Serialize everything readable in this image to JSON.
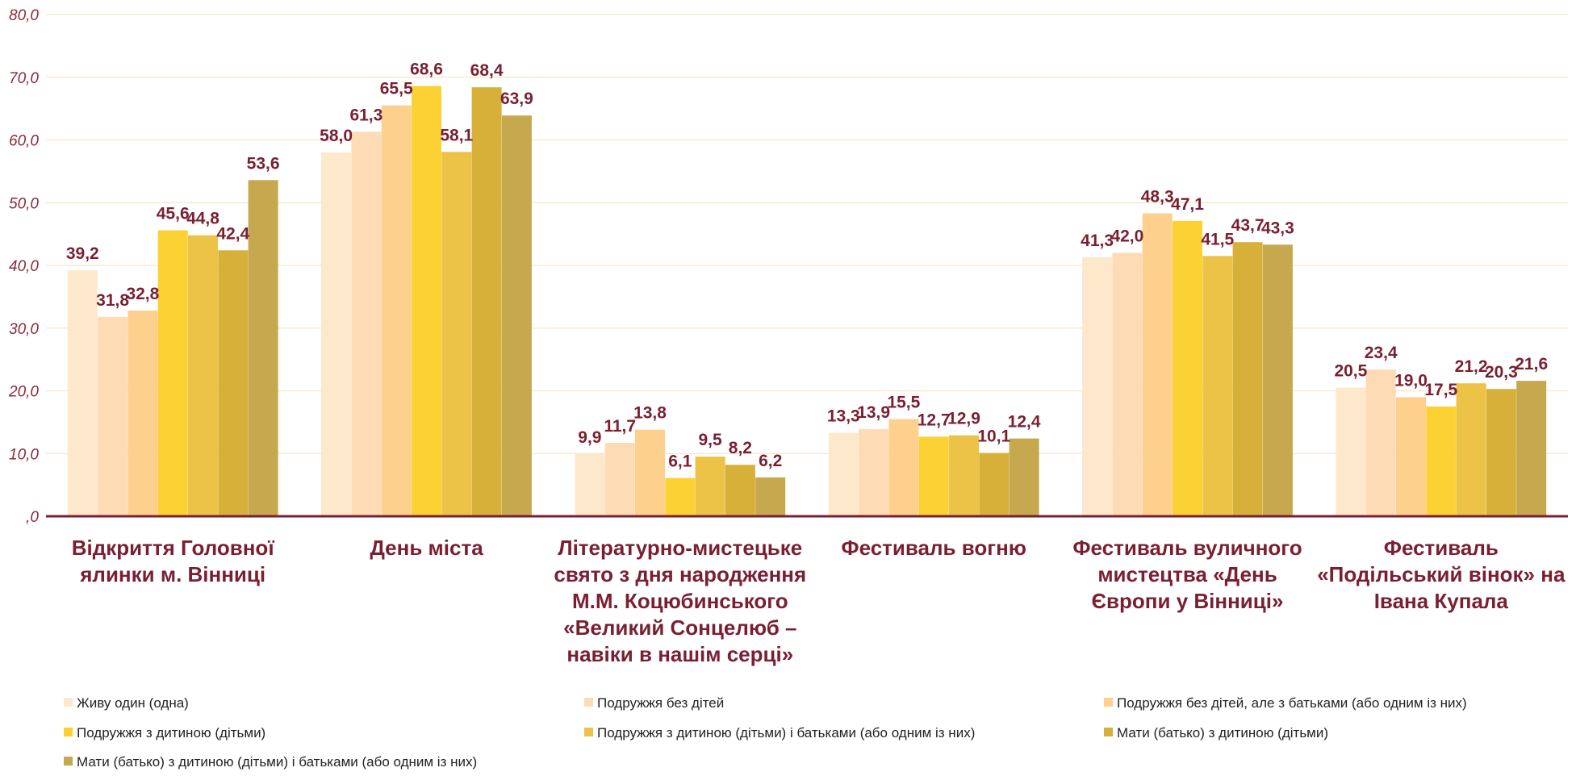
{
  "chart_data": {
    "type": "bar",
    "ylim": [
      0,
      80
    ],
    "yticks": [
      ",0",
      "10,0",
      "20,0",
      "30,0",
      "40,0",
      "50,0",
      "60,0",
      "70,0",
      "80,0"
    ],
    "grid": true,
    "legend_position": "bottom",
    "categories": [
      [
        "Відкриття Головної",
        "ялинки м. Вінниці"
      ],
      [
        "День міста"
      ],
      [
        "Літературно-мистецьке",
        "свято з дня народження",
        "М.М. Коцюбинського",
        "«Великий Сонцелюб –",
        "навіки в нашім серці»"
      ],
      [
        "Фестиваль  вогню"
      ],
      [
        "Фестиваль вуличного",
        "мистецтва «День",
        "Європи у Вінниці»"
      ],
      [
        "Фестиваль",
        "«Подільський вінок» на",
        "Івана Купала"
      ]
    ],
    "series": [
      {
        "name": "Живу один (одна)",
        "color": "#fde8cc",
        "values": [
          39.2,
          58.0,
          9.9,
          13.3,
          41.3,
          20.5
        ],
        "labels": [
          "39,2",
          "58,0",
          "9,9",
          "13,3",
          "41,3",
          "20,5"
        ]
      },
      {
        "name": "Подружжя без дітей",
        "color": "#fddcb5",
        "values": [
          31.8,
          61.3,
          11.7,
          13.9,
          42.0,
          23.4
        ],
        "labels": [
          "31,8",
          "61,3",
          "11,7",
          "13,9",
          "42,0",
          "23,4"
        ]
      },
      {
        "name": "Подружжя без дітей, але з батьками (або одним із них)",
        "color": "#fdd08e",
        "values": [
          32.8,
          65.5,
          13.8,
          15.5,
          48.3,
          19.0
        ],
        "labels": [
          "32,8",
          "65,5",
          "13,8",
          "15,5",
          "48,3",
          "19,0"
        ]
      },
      {
        "name": "Подружжя з дитиною (дітьми)",
        "color": "#fcd133",
        "values": [
          45.6,
          68.6,
          6.1,
          12.7,
          47.1,
          17.5
        ],
        "labels": [
          "45,6",
          "68,6",
          "6,1",
          "12,7",
          "47,1",
          "17,5"
        ]
      },
      {
        "name": "Подружжя з дитиною (дітьми) і батьками (або одним із них)",
        "color": "#ecc346",
        "values": [
          44.8,
          58.1,
          9.5,
          12.9,
          41.5,
          21.2
        ],
        "labels": [
          "44,8",
          "58,1",
          "9,5",
          "12,9",
          "41,5",
          "21,2"
        ]
      },
      {
        "name": "Мати (батько) з дитиною (дітьми)",
        "color": "#d6b039",
        "values": [
          42.4,
          68.4,
          8.2,
          10.1,
          43.7,
          20.3
        ],
        "labels": [
          "42,4",
          "68,4",
          "8,2",
          "10,1",
          "43,7",
          "20,3"
        ]
      },
      {
        "name": "Мати (батько) з дитиною (дітьми) і батьками (або одним із них)",
        "color": "#c6a84e",
        "values": [
          53.6,
          63.9,
          6.2,
          12.4,
          43.3,
          21.6
        ],
        "labels": [
          "53,6",
          "63,9",
          "6,2",
          "12,4",
          "43,3",
          "21,6"
        ]
      }
    ]
  }
}
